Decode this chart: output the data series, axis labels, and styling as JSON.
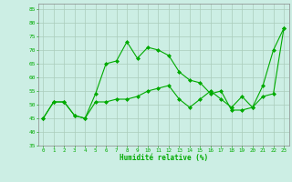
{
  "xlabel": "Humidité relative (%)",
  "xlim": [
    -0.5,
    23.5
  ],
  "ylim": [
    35,
    87
  ],
  "yticks": [
    35,
    40,
    45,
    50,
    55,
    60,
    65,
    70,
    75,
    80,
    85
  ],
  "xticks": [
    0,
    1,
    2,
    3,
    4,
    5,
    6,
    7,
    8,
    9,
    10,
    11,
    12,
    13,
    14,
    15,
    16,
    17,
    18,
    19,
    20,
    21,
    22,
    23
  ],
  "background_color": "#cceee4",
  "grid_color": "#aaccbb",
  "line_color": "#00aa00",
  "line1_x": [
    0,
    1,
    2,
    3,
    4,
    5,
    6,
    7,
    8,
    9,
    10,
    11,
    12,
    13,
    14,
    15,
    16,
    17,
    18,
    19,
    20,
    21,
    22,
    23
  ],
  "line1_y": [
    45,
    51,
    51,
    46,
    45,
    54,
    65,
    66,
    73,
    67,
    71,
    70,
    68,
    62,
    59,
    58,
    54,
    55,
    48,
    48,
    49,
    57,
    70,
    78
  ],
  "line2_x": [
    0,
    1,
    2,
    3,
    4,
    5,
    6,
    7,
    8,
    9,
    10,
    11,
    12,
    13,
    14,
    15,
    16,
    17,
    18,
    19,
    20,
    21,
    22,
    23
  ],
  "line2_y": [
    45,
    51,
    51,
    46,
    45,
    51,
    51,
    52,
    52,
    53,
    55,
    56,
    57,
    52,
    49,
    52,
    55,
    52,
    49,
    53,
    49,
    53,
    54,
    78
  ]
}
